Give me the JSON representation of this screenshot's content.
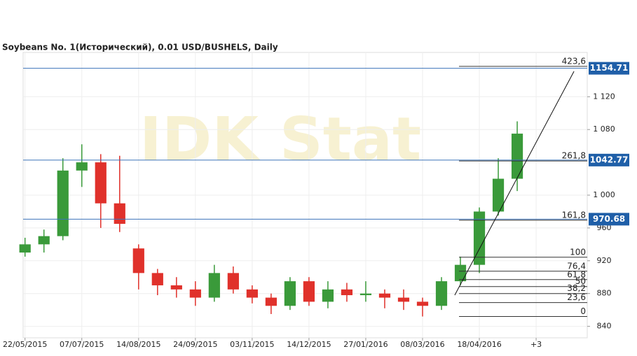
{
  "chart_data": {
    "type": "candlestick",
    "title": "Soybeans  No. 1(Исторический), 0.01 USD/BUSHELS, Daily",
    "watermark": "IDK Stat",
    "x": [
      0,
      1,
      2,
      3,
      4,
      5,
      6,
      7,
      8,
      9,
      10,
      11,
      12,
      13,
      14,
      15,
      16,
      17,
      18,
      19,
      20,
      21,
      22,
      23,
      24,
      25,
      26
    ],
    "open": [
      930,
      940,
      950,
      1030,
      1040,
      990,
      935,
      905,
      890,
      885,
      875,
      905,
      885,
      875,
      865,
      895,
      870,
      885,
      878,
      880,
      875,
      870,
      865,
      895,
      915,
      980,
      1020
    ],
    "high": [
      948,
      958,
      1045,
      1062,
      1050,
      1048,
      940,
      910,
      900,
      895,
      915,
      913,
      890,
      880,
      900,
      900,
      895,
      893,
      895,
      885,
      885,
      875,
      900,
      925,
      985,
      1045,
      1090
    ],
    "low": [
      925,
      930,
      945,
      1010,
      960,
      955,
      885,
      878,
      875,
      865,
      870,
      880,
      868,
      855,
      860,
      865,
      862,
      870,
      870,
      862,
      860,
      852,
      860,
      890,
      905,
      975,
      1005
    ],
    "close": [
      940,
      950,
      1030,
      1040,
      990,
      965,
      905,
      890,
      885,
      875,
      905,
      885,
      875,
      865,
      895,
      870,
      885,
      878,
      880,
      875,
      870,
      865,
      895,
      915,
      980,
      1020,
      1075
    ],
    "up_color": "#3a9a3a",
    "down_color": "#e0312b",
    "xlim": [
      -0.1,
      29.7
    ],
    "ylim": [
      826,
      1174
    ],
    "xticks": [
      {
        "value": 0,
        "label": "22/05/2015"
      },
      {
        "value": 3,
        "label": "07/07/2015"
      },
      {
        "value": 6,
        "label": "14/08/2015"
      },
      {
        "value": 9,
        "label": "24/09/2015"
      },
      {
        "value": 12,
        "label": "03/11/2015"
      },
      {
        "value": 15,
        "label": "14/12/2015"
      },
      {
        "value": 18,
        "label": "27/01/2016"
      },
      {
        "value": 21,
        "label": "08/03/2016"
      },
      {
        "value": 24,
        "label": "18/04/2016"
      },
      {
        "value": 27,
        "label": "+3"
      }
    ],
    "yticks": [
      840,
      880,
      920,
      960,
      {
        "value": 1000,
        "label": "1 000"
      },
      {
        "value": 1080,
        "label": "1 080"
      },
      {
        "value": 1120,
        "label": "1 120"
      }
    ],
    "grid": true,
    "price_lines": [
      1154.71,
      1042.77,
      970.68
    ],
    "price_line_color": "#3b73b9",
    "fib_levels": [
      {
        "label": "423,6",
        "price": 1157
      },
      {
        "label": "261,8",
        "price": 1041.7
      },
      {
        "label": "161,8",
        "price": 969.4
      },
      {
        "label": "100",
        "price": 924.3
      },
      {
        "label": "76,4",
        "price": 907.2
      },
      {
        "label": "61,8",
        "price": 897
      },
      {
        "label": "50",
        "price": 888.5
      },
      {
        "label": "38,2",
        "price": 880
      },
      {
        "label": "23,6",
        "price": 869
      },
      {
        "label": "0",
        "price": 852
      }
    ],
    "trendline": {
      "x": [
        22.7,
        29
      ],
      "y": [
        878,
        1151
      ]
    }
  }
}
